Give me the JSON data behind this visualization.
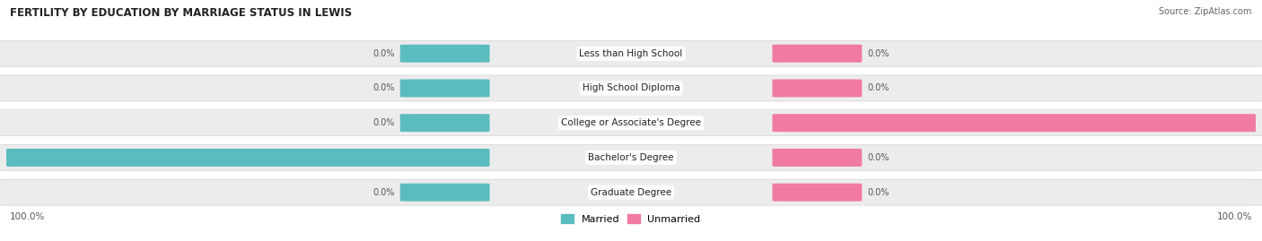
{
  "title": "FERTILITY BY EDUCATION BY MARRIAGE STATUS IN LEWIS",
  "source": "Source: ZipAtlas.com",
  "categories": [
    "Less than High School",
    "High School Diploma",
    "College or Associate's Degree",
    "Bachelor's Degree",
    "Graduate Degree"
  ],
  "married": [
    0.0,
    0.0,
    0.0,
    100.0,
    0.0
  ],
  "unmarried": [
    0.0,
    0.0,
    100.0,
    0.0,
    0.0
  ],
  "married_color": "#5bbcbf",
  "unmarried_color": "#f07aa0",
  "row_bg_color": "#ebebeb",
  "row_bg_color2": "#e0e0e0",
  "max_val": 100.0,
  "figsize": [
    14.06,
    2.69
  ],
  "dpi": 100,
  "bottom_left_label": "100.0%",
  "bottom_right_label": "100.0%"
}
